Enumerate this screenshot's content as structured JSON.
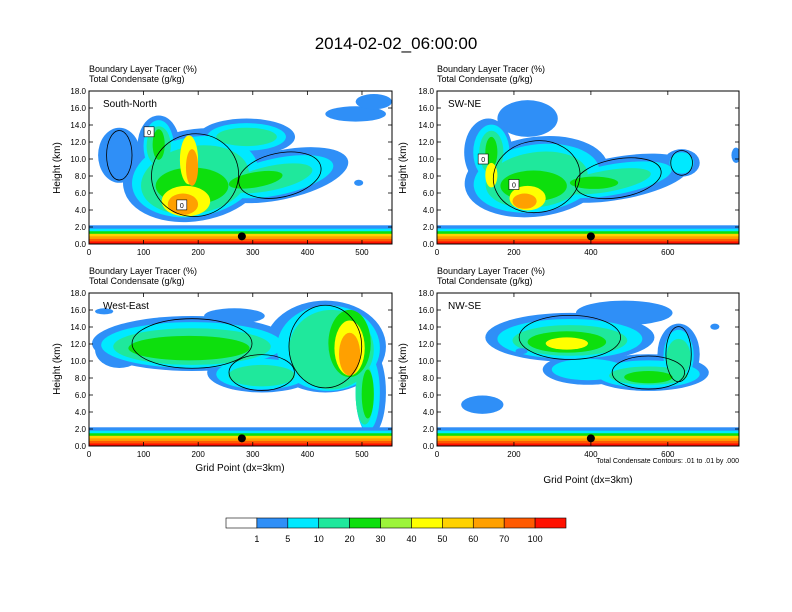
{
  "title": "2014-02-02_06:00:00",
  "chart_data": {
    "type": "heatmap",
    "colorbar": {
      "colors": [
        "#ffffff",
        "#2f8ff7",
        "#00e9ff",
        "#1fe89c",
        "#0ddf0d",
        "#9cf53a",
        "#ffff00",
        "#ffd200",
        "#ffa000",
        "#ff5a00",
        "#ff1100"
      ],
      "tick_labels": [
        "1",
        "5",
        "10",
        "20",
        "30",
        "40",
        "50",
        "60",
        "70",
        "100"
      ]
    },
    "panels": [
      {
        "id": "sn",
        "label": "South-North",
        "variable_label": "Boundary Layer Tracer   (%)",
        "contour_label": "Total Condensate   (g/kg)",
        "ylabel": "Height (km)",
        "xlabel": "",
        "xlim": [
          0,
          555
        ],
        "ylim": [
          0,
          18
        ],
        "xticks": [
          "0",
          "100",
          "200",
          "300",
          "400",
          "500"
        ],
        "yticks": [
          "0.0",
          "2.0",
          "4.0",
          "6.0",
          "8.0",
          "10.0",
          "12.0",
          "14.0",
          "16.0",
          "18.0"
        ],
        "contour_labels": [
          {
            "x": 110,
            "y": 13.2,
            "text": "0"
          },
          {
            "x": 170,
            "y": 4.6,
            "text": "0"
          }
        ],
        "marker": {
          "x": 280,
          "y": 0.9
        }
      },
      {
        "id": "swne",
        "label": "SW-NE",
        "variable_label": "Boundary Layer Tracer   (%)",
        "contour_label": "Total Condensate   (g/kg)",
        "ylabel": "Height (km)",
        "xlabel": "",
        "xlim": [
          0,
          785
        ],
        "ylim": [
          0,
          18
        ],
        "xticks": [
          "0",
          "200",
          "400",
          "600"
        ],
        "yticks": [
          "0.0",
          "2.0",
          "4.0",
          "6.0",
          "8.0",
          "10.0",
          "12.0",
          "14.0",
          "16.0",
          "18.0"
        ],
        "contour_labels": [
          {
            "x": 120,
            "y": 10.0,
            "text": "0"
          },
          {
            "x": 200,
            "y": 7.0,
            "text": "0"
          }
        ],
        "marker": {
          "x": 400,
          "y": 0.9
        }
      },
      {
        "id": "we",
        "label": "West-East",
        "variable_label": "Boundary Layer Tracer   (%)",
        "contour_label": "Total Condensate   (g/kg)",
        "ylabel": "Height (km)",
        "xlabel": "Grid Point (dx=3km)",
        "xlim": [
          0,
          555
        ],
        "ylim": [
          0,
          18
        ],
        "xticks": [
          "0",
          "100",
          "200",
          "300",
          "400",
          "500"
        ],
        "yticks": [
          "0.0",
          "2.0",
          "4.0",
          "6.0",
          "8.0",
          "10.0",
          "12.0",
          "14.0",
          "16.0",
          "18.0"
        ],
        "contour_labels": [],
        "marker": {
          "x": 280,
          "y": 0.9
        }
      },
      {
        "id": "nwse",
        "label": "NW-SE",
        "variable_label": "Boundary Layer Tracer   (%)",
        "contour_label": "Total Condensate   (g/kg)",
        "ylabel": "Height (km)",
        "xlabel": "Grid Point (dx=3km)",
        "xlim": [
          0,
          785
        ],
        "ylim": [
          0,
          18
        ],
        "xticks": [
          "0",
          "200",
          "400",
          "600"
        ],
        "yticks": [
          "0.0",
          "2.0",
          "4.0",
          "6.0",
          "8.0",
          "10.0",
          "12.0",
          "14.0",
          "16.0",
          "18.0"
        ],
        "contour_labels": [],
        "marker": {
          "x": 400,
          "y": 0.9
        },
        "footnote": "Total Condensate Contours: .01 to .01 by .000"
      }
    ]
  }
}
